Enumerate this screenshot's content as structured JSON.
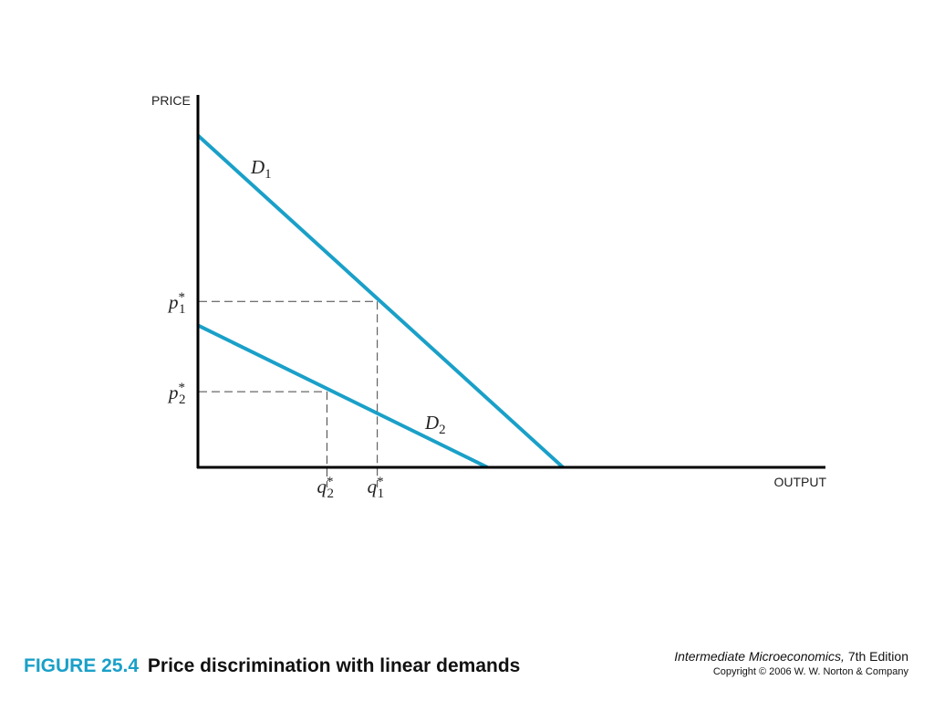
{
  "chart_data": {
    "type": "line",
    "title": "",
    "xlabel": "OUTPUT",
    "ylabel": "PRICE",
    "xlim": [
      0,
      10
    ],
    "ylim": [
      0,
      10
    ],
    "grid": false,
    "series": [
      {
        "name": "D1",
        "label_main": "D",
        "label_sub": "1",
        "color": "#1aa0c8",
        "x": [
          0,
          5.8
        ],
        "y": [
          9.0,
          0
        ]
      },
      {
        "name": "D2",
        "label_main": "D",
        "label_sub": "2",
        "color": "#1aa0c8",
        "x": [
          0,
          4.6
        ],
        "y": [
          3.85,
          0
        ]
      }
    ],
    "annotations": [
      {
        "id": "p1",
        "main": "p",
        "sub": "1",
        "axis": "y",
        "value": 4.5
      },
      {
        "id": "p2",
        "main": "p",
        "sub": "2",
        "axis": "y",
        "value": 2.05
      },
      {
        "id": "q2",
        "main": "q",
        "sub": "2",
        "axis": "x",
        "value": 2.05
      },
      {
        "id": "q1",
        "main": "q",
        "sub": "1",
        "axis": "x",
        "value": 2.85
      }
    ],
    "guides": [
      {
        "x": 2.85,
        "y": 4.5
      },
      {
        "x": 2.05,
        "y": 2.05
      }
    ]
  },
  "caption": {
    "figure_number": "FIGURE 25.4",
    "figure_title": "Price discrimination with linear demands"
  },
  "book": {
    "title": "Intermediate Microeconomics,",
    "edition": "7th Edition",
    "copyright": "Copyright © 2006 W. W. Norton & Company"
  }
}
